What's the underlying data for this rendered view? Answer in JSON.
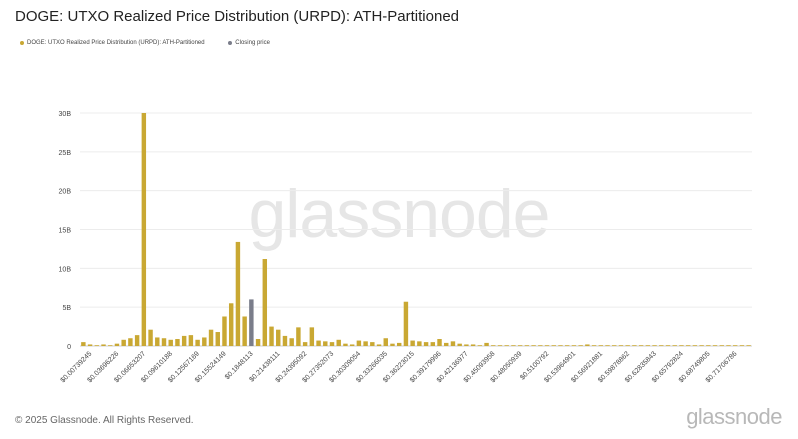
{
  "title": "DOGE: UTXO Realized Price Distribution (URPD): ATH-Partitioned",
  "legend": {
    "items": [
      {
        "label": "DOGE: UTXO Realized Price Distribution (URPD): ATH-Partitioned",
        "color": "#c9a833"
      },
      {
        "label": "Closing price",
        "color": "#7a7d8a"
      }
    ]
  },
  "watermark": "glassnode",
  "footer": {
    "copyright": "© 2025 Glassnode. All Rights Reserved.",
    "logo": "glassnode"
  },
  "chart_data": {
    "type": "bar",
    "ylim": [
      0,
      30
    ],
    "y_ticks": [
      0,
      5,
      10,
      15,
      20,
      25,
      30
    ],
    "y_tick_labels": [
      "0",
      "5B",
      "10B",
      "15B",
      "20B",
      "25B",
      "30B"
    ],
    "grid": true,
    "bar_color": "#c9a833",
    "closing_color": "#7a7d8a",
    "x_labels": [
      "$0.00739245",
      "$0.03696226",
      "$0.06653207",
      "$0.09610188",
      "$0.12567169",
      "$0.15524149",
      "$0.1848113",
      "$0.21438111",
      "$0.24395092",
      "$0.27352073",
      "$0.30309054",
      "$0.33266035",
      "$0.36223015",
      "$0.39179996",
      "$0.42136977",
      "$0.45093958",
      "$0.48050939",
      "$0.5100792",
      "$0.53964901",
      "$0.56921881",
      "$0.59878862",
      "$0.62835843",
      "$0.65792824",
      "$0.68749805",
      "$0.71706786"
    ],
    "closing_index": 25,
    "values": [
      0.5,
      0.2,
      0.1,
      0.2,
      0.1,
      0.3,
      0.8,
      1.0,
      1.4,
      30.0,
      2.1,
      1.1,
      1.0,
      0.8,
      0.9,
      1.3,
      1.4,
      0.8,
      1.1,
      2.1,
      1.8,
      3.8,
      5.5,
      13.4,
      3.8,
      6.0,
      0.9,
      11.2,
      2.5,
      2.1,
      1.3,
      1.0,
      2.4,
      0.5,
      2.4,
      0.7,
      0.6,
      0.5,
      0.8,
      0.3,
      0.2,
      0.7,
      0.6,
      0.5,
      0.2,
      1.0,
      0.3,
      0.4,
      5.7,
      0.7,
      0.6,
      0.5,
      0.5,
      0.9,
      0.4,
      0.6,
      0.3,
      0.2,
      0.2,
      0.1,
      0.4,
      0.1,
      0.1,
      0.1,
      0.1,
      0.1,
      0.1,
      0.1,
      0.1,
      0.1,
      0.1,
      0.1,
      0.1,
      0.1,
      0.1,
      0.2,
      0.1,
      0.1,
      0.1,
      0.1,
      0.1,
      0.1,
      0.1,
      0.1,
      0.1,
      0.1,
      0.1,
      0.1,
      0.1,
      0.1,
      0.1,
      0.1,
      0.1,
      0.1,
      0.1,
      0.1,
      0.1,
      0.1,
      0.1,
      0.1
    ]
  }
}
